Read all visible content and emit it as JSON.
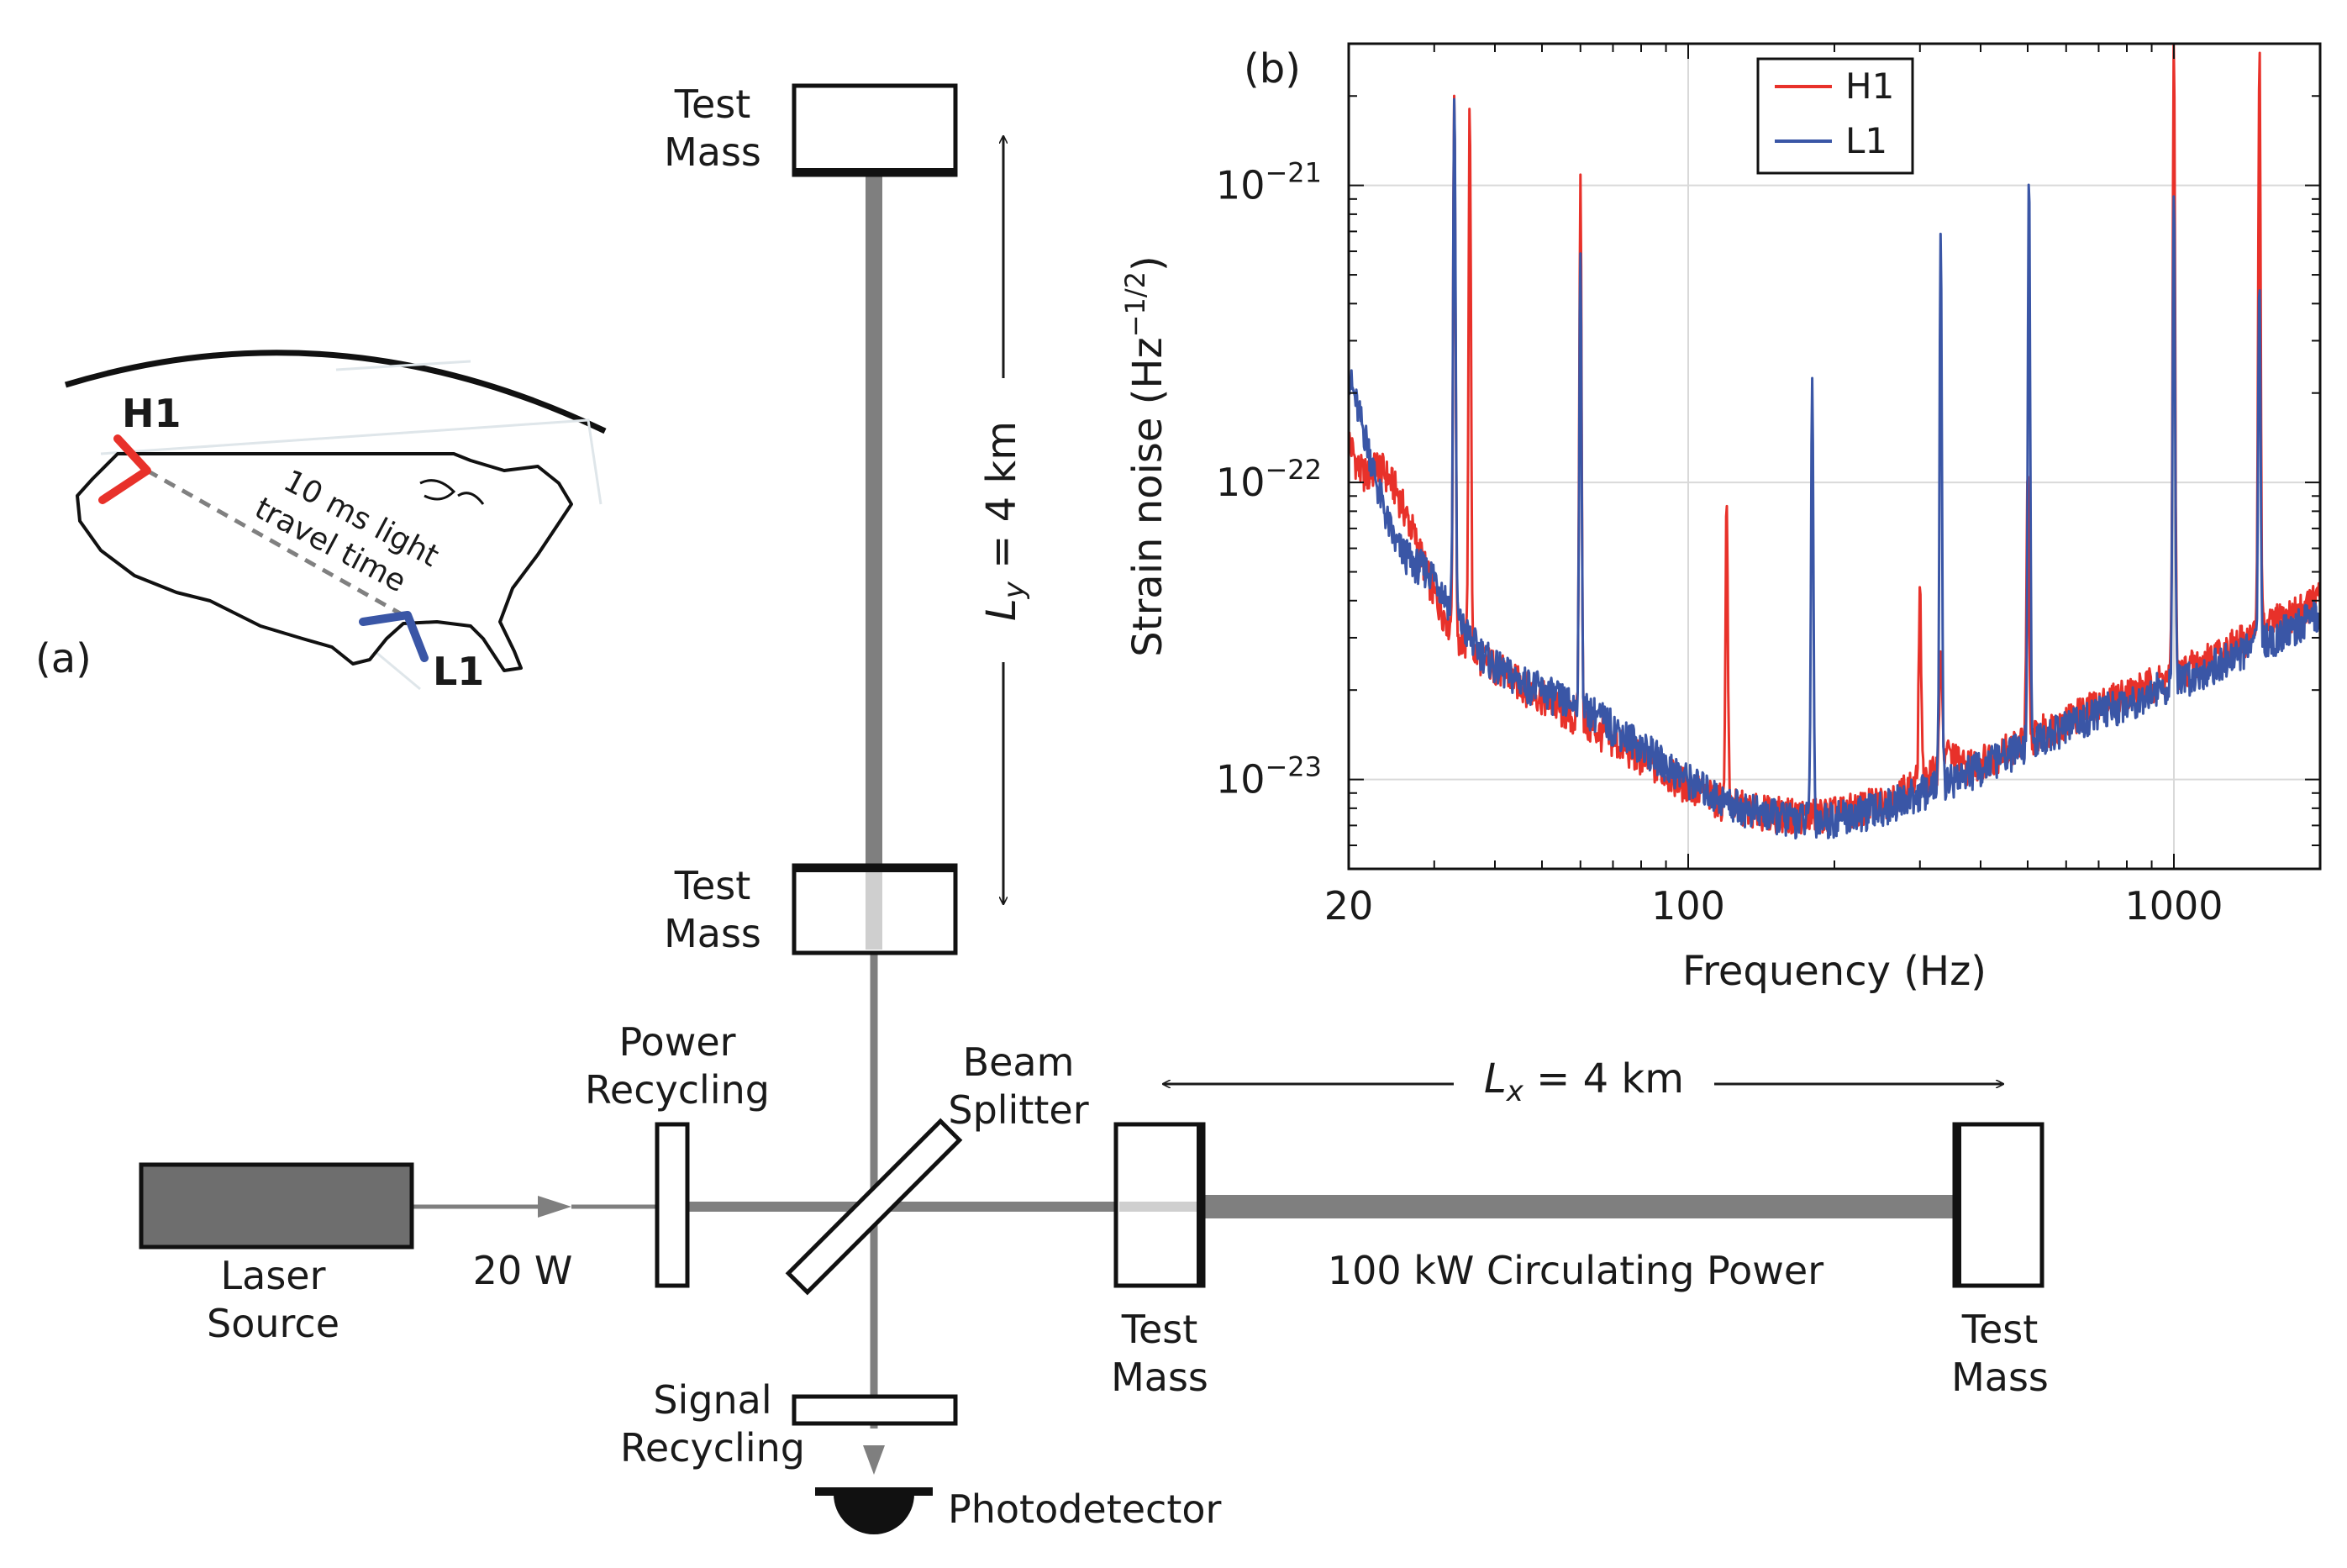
{
  "panel_a": {
    "label": "(a)",
    "site_h1": "H1",
    "site_l1": "L1",
    "travel_line1": "10 ms light",
    "travel_line2": "travel time",
    "colors": {
      "h1": "#e8312a",
      "l1": "#3a56a6",
      "link": "#808080"
    }
  },
  "interferometer": {
    "test_mass_y_far": [
      "Test",
      "Mass"
    ],
    "test_mass_y_near": [
      "Test",
      "Mass"
    ],
    "test_mass_x_near": [
      "Test",
      "Mass"
    ],
    "test_mass_x_far": [
      "Test",
      "Mass"
    ],
    "ly_label": "L",
    "ly_sub": "y",
    "ly_value": " = 4 km",
    "lx_label": "L",
    "lx_sub": "x",
    "lx_value": " = 4 km",
    "laser_source": [
      "Laser",
      "Source"
    ],
    "input_power": "20 W",
    "power_recycling": [
      "Power",
      "Recycling"
    ],
    "beam_splitter": [
      "Beam",
      "Splitter"
    ],
    "circulating_power": "100 kW Circulating Power",
    "signal_recycling": [
      "Signal",
      "Recycling"
    ],
    "photodetector": "Photodetector",
    "colors": {
      "beam": "#7f7f7f",
      "laser_fill": "#6e6e6e",
      "detector": "#111111"
    }
  },
  "chart_data": {
    "type": "line",
    "panel_label": "(b)",
    "title": "",
    "xlabel": "Frequency (Hz)",
    "ylabel_main": "Strain noise (Hz",
    "ylabel_sup": "−1/2",
    "ylabel_end": ")",
    "x_scale": "log",
    "y_scale": "log",
    "xlim": [
      20,
      2000
    ],
    "ylim": [
      5e-24,
      3e-21
    ],
    "x_ticks": [
      {
        "value": 20,
        "label": "20"
      },
      {
        "value": 100,
        "label": "100"
      },
      {
        "value": 1000,
        "label": "1000"
      }
    ],
    "y_ticks": [
      {
        "value": 1e-23,
        "base": "10",
        "exp": "−23"
      },
      {
        "value": 1e-22,
        "base": "10",
        "exp": "−22"
      },
      {
        "value": 1e-21,
        "base": "10",
        "exp": "−21"
      }
    ],
    "grid": true,
    "legend_position": "top-left",
    "series": [
      {
        "name": "H1",
        "color": "#e8312a",
        "x": [
          20,
          21,
          22,
          23,
          24,
          25,
          27,
          30,
          33,
          36,
          40,
          45,
          50,
          55,
          60,
          65,
          70,
          80,
          90,
          100,
          110,
          120,
          140,
          160,
          180,
          200,
          220,
          250,
          280,
          300,
          320,
          340,
          370,
          400,
          450,
          500,
          550,
          600,
          700,
          800,
          900,
          1000,
          1200,
          1400,
          1600,
          1800,
          2000
        ],
        "y": [
          1.4e-22,
          1.1e-22,
          1.05e-22,
          1.15e-22,
          1.05e-22,
          9.5e-23,
          7e-23,
          4.2e-23,
          3.1e-23,
          2.7e-23,
          2.4e-23,
          2.1e-23,
          1.9e-23,
          1.7e-23,
          1.55e-23,
          1.45e-23,
          1.35e-23,
          1.18e-23,
          1.05e-23,
          9.5e-24,
          8.8e-24,
          8.3e-24,
          7.8e-24,
          7.6e-24,
          7.6e-24,
          7.7e-24,
          7.9e-24,
          8.4e-24,
          9.2e-24,
          9.8e-24,
          1.05e-23,
          1.25e-23,
          1.1e-23,
          1.15e-23,
          1.25e-23,
          1.38e-23,
          1.48e-23,
          1.58e-23,
          1.78e-23,
          1.95e-23,
          2.1e-23,
          2.25e-23,
          2.6e-23,
          2.95e-23,
          3.35e-23,
          3.7e-23,
          4.1e-23
        ]
      },
      {
        "name": "L1",
        "color": "#3a56a6",
        "x": [
          20,
          21,
          22,
          23,
          24,
          25,
          27,
          30,
          33,
          36,
          40,
          45,
          50,
          55,
          60,
          65,
          70,
          80,
          90,
          100,
          110,
          120,
          140,
          160,
          180,
          200,
          220,
          250,
          280,
          300,
          320,
          340,
          370,
          400,
          450,
          500,
          550,
          600,
          700,
          800,
          900,
          1000,
          1200,
          1400,
          1600,
          1800,
          2000
        ],
        "y": [
          2.3e-22,
          1.7e-22,
          1.3e-22,
          9.5e-23,
          7.5e-23,
          6.2e-23,
          5.4e-23,
          4.9e-23,
          3.6e-23,
          2.9e-23,
          2.4e-23,
          2.15e-23,
          2e-23,
          1.85e-23,
          1.75e-23,
          1.65e-23,
          1.5e-23,
          1.3e-23,
          1.12e-23,
          1e-23,
          9.1e-24,
          8.4e-24,
          7.7e-24,
          7.4e-24,
          7.3e-24,
          7.4e-24,
          7.6e-24,
          8e-24,
          8.6e-24,
          9e-24,
          9.4e-24,
          9.9e-24,
          1.04e-23,
          1.1e-23,
          1.2e-23,
          1.3e-23,
          1.4e-23,
          1.5e-23,
          1.68e-23,
          1.82e-23,
          1.97e-23,
          2.1e-23,
          2.4e-23,
          2.7e-23,
          3e-23,
          3.3e-23,
          3.6e-23
        ]
      }
    ],
    "spikes": [
      {
        "series": "H1",
        "x": 33.0,
        "y": 2.1e-21
      },
      {
        "series": "H1",
        "x": 35.5,
        "y": 1.9e-21
      },
      {
        "series": "H1",
        "x": 60.0,
        "y": 1e-21
      },
      {
        "series": "H1",
        "x": 120.0,
        "y": 8.5e-23
      },
      {
        "series": "H1",
        "x": 300.0,
        "y": 4.5e-23
      },
      {
        "series": "H1",
        "x": 331.0,
        "y": 3e-23
      },
      {
        "series": "H1",
        "x": 500.0,
        "y": 1e-22
      },
      {
        "series": "H1",
        "x": 1000.0,
        "y": 3e-21
      },
      {
        "series": "H1",
        "x": 1500.0,
        "y": 3e-21
      },
      {
        "series": "L1",
        "x": 33.0,
        "y": 2.2e-21
      },
      {
        "series": "L1",
        "x": 60.0,
        "y": 5.5e-22
      },
      {
        "series": "L1",
        "x": 180.0,
        "y": 2.2e-22
      },
      {
        "series": "L1",
        "x": 331.0,
        "y": 6.5e-22
      },
      {
        "series": "L1",
        "x": 503.0,
        "y": 1.05e-21
      },
      {
        "series": "L1",
        "x": 1000.0,
        "y": 9e-22
      },
      {
        "series": "L1",
        "x": 1500.0,
        "y": 5e-22
      }
    ]
  }
}
